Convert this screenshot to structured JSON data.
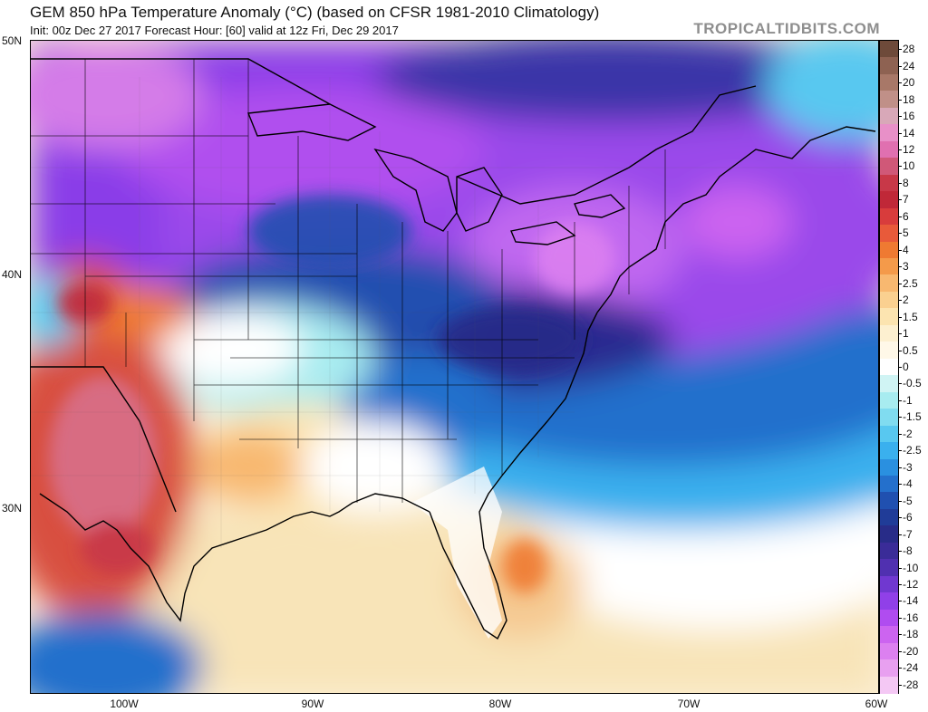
{
  "header": {
    "title": "GEM 850 hPa Temperature Anomaly (°C) (based on CFSR 1981-2010 Climatology)",
    "subtitle": "Init: 00z Dec 27 2017   Forecast Hour: [60]   valid at 12z Fri, Dec 29 2017",
    "brand": "TROPICALTIDBITS.COM"
  },
  "map": {
    "region": "Eastern United States",
    "lat_labels": [
      "50N",
      "40N",
      "30N"
    ],
    "lon_labels": [
      "100W",
      "90W",
      "80W",
      "70W",
      "60W"
    ],
    "colors": {
      "water_background": "#d8c8f0",
      "strong_cold": "#3f2d9c",
      "cold": "#8a3ee8",
      "very_cold": "#b85cf0",
      "warm": "#d84a3a",
      "neutral": "#ffffff",
      "mild": "#f8e0a8"
    }
  },
  "colorbar": {
    "labels": [
      "28",
      "24",
      "20",
      "18",
      "16",
      "14",
      "12",
      "10",
      "8",
      "7",
      "6",
      "5",
      "4",
      "3",
      "2.5",
      "2",
      "1.5",
      "1",
      "0.5",
      "0",
      "-0.5",
      "-1",
      "-1.5",
      "-2",
      "-2.5",
      "-3",
      "-4",
      "-5",
      "-6",
      "-7",
      "-8",
      "-10",
      "-12",
      "-14",
      "-16",
      "-18",
      "-20",
      "-24",
      "-28"
    ],
    "colors": [
      "#6e4a3a",
      "#8e6252",
      "#a87868",
      "#c09088",
      "#d8a8b8",
      "#e890c8",
      "#e070b0",
      "#d05878",
      "#c83848",
      "#c02838",
      "#d83c3c",
      "#e85a3a",
      "#ef7a32",
      "#f49a4a",
      "#f8b870",
      "#fad090",
      "#fce4b0",
      "#fdf0d0",
      "#fff8e8",
      "#ffffff",
      "#d0f4f4",
      "#a8ecf0",
      "#80dcf0",
      "#58c8f0",
      "#3ab0ee",
      "#2a90e0",
      "#2470cc",
      "#2050b0",
      "#203c98",
      "#282c88",
      "#3a2c98",
      "#5030b0",
      "#7038d0",
      "#9040e8",
      "#b04cf0",
      "#cc64f0",
      "#dc80f0",
      "#e8a0f0",
      "#f4c8f4"
    ]
  }
}
